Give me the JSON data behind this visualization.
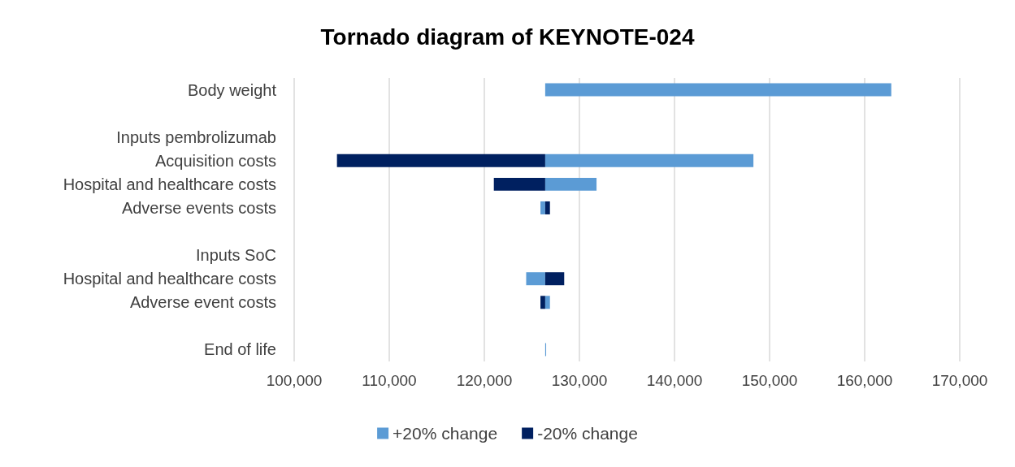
{
  "chart_data": {
    "type": "bar",
    "orientation": "horizontal",
    "title": "Tornado diagram of KEYNOTE-024",
    "categories": [
      "Body weight",
      null,
      "Inputs pembrolizumab",
      "Acquisition costs",
      "Hospital and healthcare costs",
      "Adverse events costs",
      null,
      "Inputs SoC",
      "Hospital and healthcare costs",
      "Adverse event costs",
      null,
      "End of life"
    ],
    "series": [
      {
        "name": "+20% change",
        "color": "#5b9bd5",
        "base": [
          126400,
          null,
          null,
          126400,
          126400,
          126400,
          null,
          null,
          126400,
          126400,
          null,
          126400
        ],
        "values": [
          36400,
          null,
          null,
          21900,
          5400,
          -500,
          null,
          null,
          -2000,
          500,
          null,
          100
        ]
      },
      {
        "name": "-20% change",
        "color": "#002060",
        "base": [
          null,
          null,
          null,
          126400,
          126400,
          126400,
          null,
          null,
          126400,
          126400,
          null,
          null
        ],
        "values": [
          null,
          null,
          null,
          -21900,
          -5400,
          500,
          null,
          null,
          2000,
          -500,
          null,
          null
        ]
      }
    ],
    "xlim": [
      100000,
      170000
    ],
    "xticks": [
      {
        "value": 100000,
        "label": "100,000"
      },
      {
        "value": 110000,
        "label": "110,000"
      },
      {
        "value": 120000,
        "label": "120,000"
      },
      {
        "value": 130000,
        "label": "130,000"
      },
      {
        "value": 140000,
        "label": "140,000"
      },
      {
        "value": 150000,
        "label": "150,000"
      },
      {
        "value": 160000,
        "label": "160,000"
      },
      {
        "value": 170000,
        "label": "170,000"
      }
    ],
    "grid": "x",
    "legend": "bottom"
  }
}
